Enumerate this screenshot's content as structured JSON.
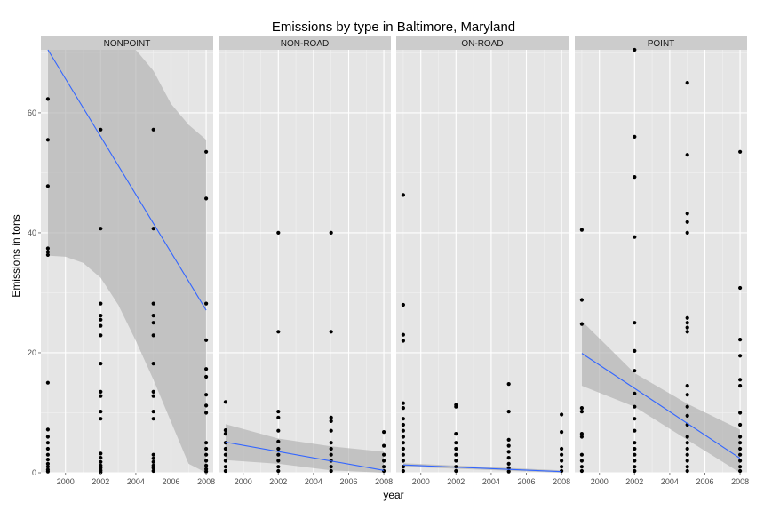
{
  "chart_data": {
    "type": "scatter",
    "title": "Emissions by type in Baltimore, Maryland",
    "xlabel": "year",
    "ylabel": "Emissions in tons",
    "xlim": [
      1998.6,
      2008.4
    ],
    "ylim": [
      0,
      70.5
    ],
    "x_ticks": [
      2000,
      2002,
      2004,
      2006,
      2008
    ],
    "x_tick_labels": [
      "2000",
      "2002",
      "2004",
      "2006",
      "2008"
    ],
    "y_ticks": [
      0,
      20,
      40,
      60
    ],
    "y_tick_labels": [
      "0",
      "20",
      "40",
      "60"
    ],
    "grid": true,
    "legend": "none",
    "colors": {
      "panel_background": "#e5e5e5",
      "grid_major": "#ffffff",
      "grid_minor": "#f2f2f2",
      "strip_background": "#cccccc",
      "point": "#000000",
      "fit_line": "#3366ff",
      "confidence_band": "#b3b3b3"
    },
    "panels": [
      {
        "name": "NONPOINT",
        "points": [
          [
            1999,
            62.3
          ],
          [
            1999,
            55.5
          ],
          [
            1999,
            47.8
          ],
          [
            1999,
            37.4
          ],
          [
            1999,
            36.8
          ],
          [
            1999,
            36.3
          ],
          [
            1999,
            15.0
          ],
          [
            1999,
            7.2
          ],
          [
            1999,
            6.0
          ],
          [
            1999,
            5.0
          ],
          [
            1999,
            4.0
          ],
          [
            1999,
            3.0
          ],
          [
            1999,
            2.2
          ],
          [
            1999,
            1.5
          ],
          [
            1999,
            1.0
          ],
          [
            1999,
            0.5
          ],
          [
            1999,
            0.2
          ],
          [
            2002,
            57.2
          ],
          [
            2002,
            40.7
          ],
          [
            2002,
            28.2
          ],
          [
            2002,
            26.2
          ],
          [
            2002,
            25.5
          ],
          [
            2002,
            24.5
          ],
          [
            2002,
            22.9
          ],
          [
            2002,
            18.2
          ],
          [
            2002,
            13.5
          ],
          [
            2002,
            12.8
          ],
          [
            2002,
            10.2
          ],
          [
            2002,
            9.0
          ],
          [
            2002,
            3.2
          ],
          [
            2002,
            2.5
          ],
          [
            2002,
            1.8
          ],
          [
            2002,
            1.2
          ],
          [
            2002,
            0.8
          ],
          [
            2002,
            0.4
          ],
          [
            2002,
            0.1
          ],
          [
            2005,
            57.2
          ],
          [
            2005,
            40.7
          ],
          [
            2005,
            28.2
          ],
          [
            2005,
            26.2
          ],
          [
            2005,
            25.0
          ],
          [
            2005,
            22.9
          ],
          [
            2005,
            18.2
          ],
          [
            2005,
            13.5
          ],
          [
            2005,
            12.8
          ],
          [
            2005,
            10.2
          ],
          [
            2005,
            9.0
          ],
          [
            2005,
            3.0
          ],
          [
            2005,
            2.4
          ],
          [
            2005,
            1.8
          ],
          [
            2005,
            1.2
          ],
          [
            2005,
            0.8
          ],
          [
            2005,
            0.3
          ],
          [
            2008,
            53.5
          ],
          [
            2008,
            45.7
          ],
          [
            2008,
            28.2
          ],
          [
            2008,
            22.1
          ],
          [
            2008,
            17.3
          ],
          [
            2008,
            16.0
          ],
          [
            2008,
            13.0
          ],
          [
            2008,
            11.2
          ],
          [
            2008,
            10.0
          ],
          [
            2008,
            5.0
          ],
          [
            2008,
            4.0
          ],
          [
            2008,
            3.0
          ],
          [
            2008,
            2.0
          ],
          [
            2008,
            1.2
          ],
          [
            2008,
            0.6
          ],
          [
            2008,
            0.2
          ]
        ],
        "fit": {
          "start": [
            1999,
            70.5
          ],
          "end": [
            2008,
            27.1
          ]
        },
        "band": {
          "x": [
            1999,
            2000,
            2001,
            2002,
            2003,
            2004,
            2005,
            2006,
            2007,
            2008
          ],
          "upper": [
            70.5,
            70.5,
            70.5,
            70.5,
            70.5,
            70.5,
            67.0,
            61.5,
            58.0,
            55.5
          ],
          "lower": [
            36.2,
            36.0,
            35.0,
            32.5,
            28.0,
            22.0,
            15.5,
            8.5,
            1.5,
            0
          ]
        }
      },
      {
        "name": "NON-ROAD",
        "points": [
          [
            1999,
            11.8
          ],
          [
            1999,
            7.1
          ],
          [
            1999,
            6.5
          ],
          [
            1999,
            5.0
          ],
          [
            1999,
            4.0
          ],
          [
            1999,
            3.0
          ],
          [
            1999,
            2.0
          ],
          [
            1999,
            1.0
          ],
          [
            1999,
            0.3
          ],
          [
            2002,
            40.0
          ],
          [
            2002,
            23.5
          ],
          [
            2002,
            10.2
          ],
          [
            2002,
            9.2
          ],
          [
            2002,
            7.0
          ],
          [
            2002,
            5.2
          ],
          [
            2002,
            4.0
          ],
          [
            2002,
            3.0
          ],
          [
            2002,
            2.0
          ],
          [
            2002,
            1.0
          ],
          [
            2002,
            0.3
          ],
          [
            2005,
            40.0
          ],
          [
            2005,
            23.5
          ],
          [
            2005,
            9.2
          ],
          [
            2005,
            8.6
          ],
          [
            2005,
            7.0
          ],
          [
            2005,
            5.0
          ],
          [
            2005,
            4.0
          ],
          [
            2005,
            3.0
          ],
          [
            2005,
            2.0
          ],
          [
            2005,
            1.0
          ],
          [
            2005,
            0.3
          ],
          [
            2008,
            6.8
          ],
          [
            2008,
            4.5
          ],
          [
            2008,
            3.0
          ],
          [
            2008,
            2.0
          ],
          [
            2008,
            1.0
          ],
          [
            2008,
            0.3
          ]
        ],
        "fit": {
          "start": [
            1999,
            5.1
          ],
          "end": [
            2008,
            0.4
          ]
        },
        "band": {
          "x": [
            1999,
            2002,
            2005,
            2008
          ],
          "upper": [
            8.1,
            5.7,
            4.4,
            3.5
          ],
          "lower": [
            2.1,
            1.5,
            0.4,
            0
          ]
        }
      },
      {
        "name": "ON-ROAD",
        "points": [
          [
            1999,
            46.3
          ],
          [
            1999,
            28.0
          ],
          [
            1999,
            23.0
          ],
          [
            1999,
            22.0
          ],
          [
            1999,
            11.6
          ],
          [
            1999,
            10.8
          ],
          [
            1999,
            9.0
          ],
          [
            1999,
            8.0
          ],
          [
            1999,
            7.0
          ],
          [
            1999,
            6.0
          ],
          [
            1999,
            5.0
          ],
          [
            1999,
            4.0
          ],
          [
            1999,
            3.0
          ],
          [
            1999,
            2.0
          ],
          [
            1999,
            1.0
          ],
          [
            1999,
            0.3
          ],
          [
            2002,
            11.3
          ],
          [
            2002,
            11.0
          ],
          [
            2002,
            6.5
          ],
          [
            2002,
            5.0
          ],
          [
            2002,
            4.0
          ],
          [
            2002,
            3.0
          ],
          [
            2002,
            2.0
          ],
          [
            2002,
            1.0
          ],
          [
            2002,
            0.3
          ],
          [
            2005,
            14.8
          ],
          [
            2005,
            10.2
          ],
          [
            2005,
            5.5
          ],
          [
            2005,
            4.5
          ],
          [
            2005,
            3.5
          ],
          [
            2005,
            2.5
          ],
          [
            2005,
            1.5
          ],
          [
            2005,
            0.8
          ],
          [
            2005,
            0.2
          ],
          [
            2008,
            9.7
          ],
          [
            2008,
            6.8
          ],
          [
            2008,
            4.0
          ],
          [
            2008,
            3.0
          ],
          [
            2008,
            2.0
          ],
          [
            2008,
            1.0
          ],
          [
            2008,
            0.3
          ]
        ],
        "fit": {
          "start": [
            1999,
            1.3
          ],
          "end": [
            2008,
            0.2
          ]
        },
        "band": {
          "x": [
            1999,
            2008
          ],
          "upper": [
            1.6,
            0.4
          ],
          "lower": [
            1.0,
            0
          ]
        }
      },
      {
        "name": "POINT",
        "points": [
          [
            1999,
            40.5
          ],
          [
            1999,
            28.8
          ],
          [
            1999,
            24.8
          ],
          [
            1999,
            10.8
          ],
          [
            1999,
            10.2
          ],
          [
            1999,
            6.5
          ],
          [
            1999,
            6.0
          ],
          [
            1999,
            3.0
          ],
          [
            1999,
            2.0
          ],
          [
            1999,
            1.0
          ],
          [
            1999,
            0.3
          ],
          [
            2002,
            70.5
          ],
          [
            2002,
            56.0
          ],
          [
            2002,
            49.3
          ],
          [
            2002,
            39.3
          ],
          [
            2002,
            25.0
          ],
          [
            2002,
            20.3
          ],
          [
            2002,
            17.0
          ],
          [
            2002,
            13.2
          ],
          [
            2002,
            11.0
          ],
          [
            2002,
            9.0
          ],
          [
            2002,
            7.0
          ],
          [
            2002,
            5.0
          ],
          [
            2002,
            4.0
          ],
          [
            2002,
            3.0
          ],
          [
            2002,
            2.0
          ],
          [
            2002,
            1.0
          ],
          [
            2002,
            0.3
          ],
          [
            2005,
            65.0
          ],
          [
            2005,
            53.0
          ],
          [
            2005,
            43.2
          ],
          [
            2005,
            41.8
          ],
          [
            2005,
            40.0
          ],
          [
            2005,
            25.8
          ],
          [
            2005,
            25.0
          ],
          [
            2005,
            24.2
          ],
          [
            2005,
            23.5
          ],
          [
            2005,
            14.5
          ],
          [
            2005,
            13.0
          ],
          [
            2005,
            11.0
          ],
          [
            2005,
            9.5
          ],
          [
            2005,
            8.0
          ],
          [
            2005,
            6.0
          ],
          [
            2005,
            5.0
          ],
          [
            2005,
            4.0
          ],
          [
            2005,
            3.0
          ],
          [
            2005,
            2.0
          ],
          [
            2005,
            1.0
          ],
          [
            2005,
            0.3
          ],
          [
            2008,
            53.5
          ],
          [
            2008,
            30.8
          ],
          [
            2008,
            22.2
          ],
          [
            2008,
            19.5
          ],
          [
            2008,
            15.5
          ],
          [
            2008,
            14.5
          ],
          [
            2008,
            10.0
          ],
          [
            2008,
            8.0
          ],
          [
            2008,
            6.0
          ],
          [
            2008,
            5.0
          ],
          [
            2008,
            4.0
          ],
          [
            2008,
            3.0
          ],
          [
            2008,
            2.0
          ],
          [
            2008,
            1.0
          ],
          [
            2008,
            0.3
          ]
        ],
        "fit": {
          "start": [
            1999,
            19.9
          ],
          "end": [
            2008,
            2.4
          ]
        },
        "band": {
          "x": [
            1999,
            2002,
            2005,
            2008
          ],
          "upper": [
            25.3,
            16.6,
            11.5,
            7.2
          ],
          "lower": [
            14.5,
            11.0,
            5.5,
            0
          ]
        }
      }
    ]
  }
}
